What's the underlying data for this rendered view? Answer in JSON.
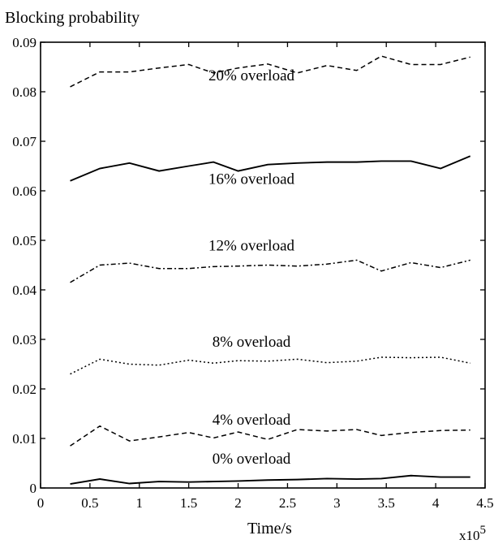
{
  "chart_data": {
    "type": "line",
    "title": "Blocking probability",
    "xlabel": "Time/s",
    "ylabel": "",
    "x_multiplier": "x10",
    "x_multiplier_exp": "5",
    "xlim": [
      0,
      4.5
    ],
    "ylim": [
      0,
      0.09
    ],
    "xticks": [
      "0",
      "0.5",
      "1",
      "1.5",
      "2",
      "2.5",
      "3",
      "3.5",
      "4",
      "4.5"
    ],
    "yticks": [
      "0",
      "0.01",
      "0.02",
      "0.03",
      "0.04",
      "0.05",
      "0.06",
      "0.07",
      "0.08",
      "0.09"
    ],
    "grid": false,
    "x": [
      0.3,
      0.6,
      0.9,
      1.2,
      1.5,
      1.75,
      2.0,
      2.3,
      2.6,
      2.9,
      3.2,
      3.45,
      3.75,
      4.05,
      4.35
    ],
    "series": [
      {
        "name": "20% overload",
        "style": "dashed",
        "values": [
          0.081,
          0.084,
          0.084,
          0.0848,
          0.0855,
          0.0838,
          0.0848,
          0.0856,
          0.0838,
          0.0853,
          0.0843,
          0.0872,
          0.0855,
          0.0855,
          0.087
        ]
      },
      {
        "name": "16% overload",
        "style": "solid",
        "values": [
          0.062,
          0.0645,
          0.0656,
          0.064,
          0.065,
          0.0658,
          0.064,
          0.0653,
          0.0656,
          0.0658,
          0.0658,
          0.066,
          0.066,
          0.0645,
          0.067
        ]
      },
      {
        "name": "12% overload",
        "style": "dashdot",
        "values": [
          0.0415,
          0.045,
          0.0454,
          0.0443,
          0.0443,
          0.0447,
          0.0448,
          0.045,
          0.0448,
          0.0452,
          0.046,
          0.0438,
          0.0455,
          0.0445,
          0.046
        ]
      },
      {
        "name": "8% overload",
        "style": "dotted",
        "values": [
          0.023,
          0.026,
          0.025,
          0.0248,
          0.0258,
          0.0252,
          0.0257,
          0.0256,
          0.026,
          0.0253,
          0.0256,
          0.0264,
          0.0263,
          0.0264,
          0.0252
        ]
      },
      {
        "name": "4% overload",
        "style": "dashed",
        "values": [
          0.0085,
          0.0125,
          0.0095,
          0.0103,
          0.0112,
          0.0101,
          0.0113,
          0.0098,
          0.0118,
          0.0115,
          0.0118,
          0.0106,
          0.0112,
          0.0116,
          0.0117
        ]
      },
      {
        "name": "0% overload",
        "style": "solid",
        "values": [
          0.0008,
          0.0018,
          0.0009,
          0.0013,
          0.0012,
          0.0013,
          0.0014,
          0.0016,
          0.0017,
          0.0019,
          0.0018,
          0.0019,
          0.0025,
          0.0022,
          0.0022
        ]
      }
    ]
  }
}
